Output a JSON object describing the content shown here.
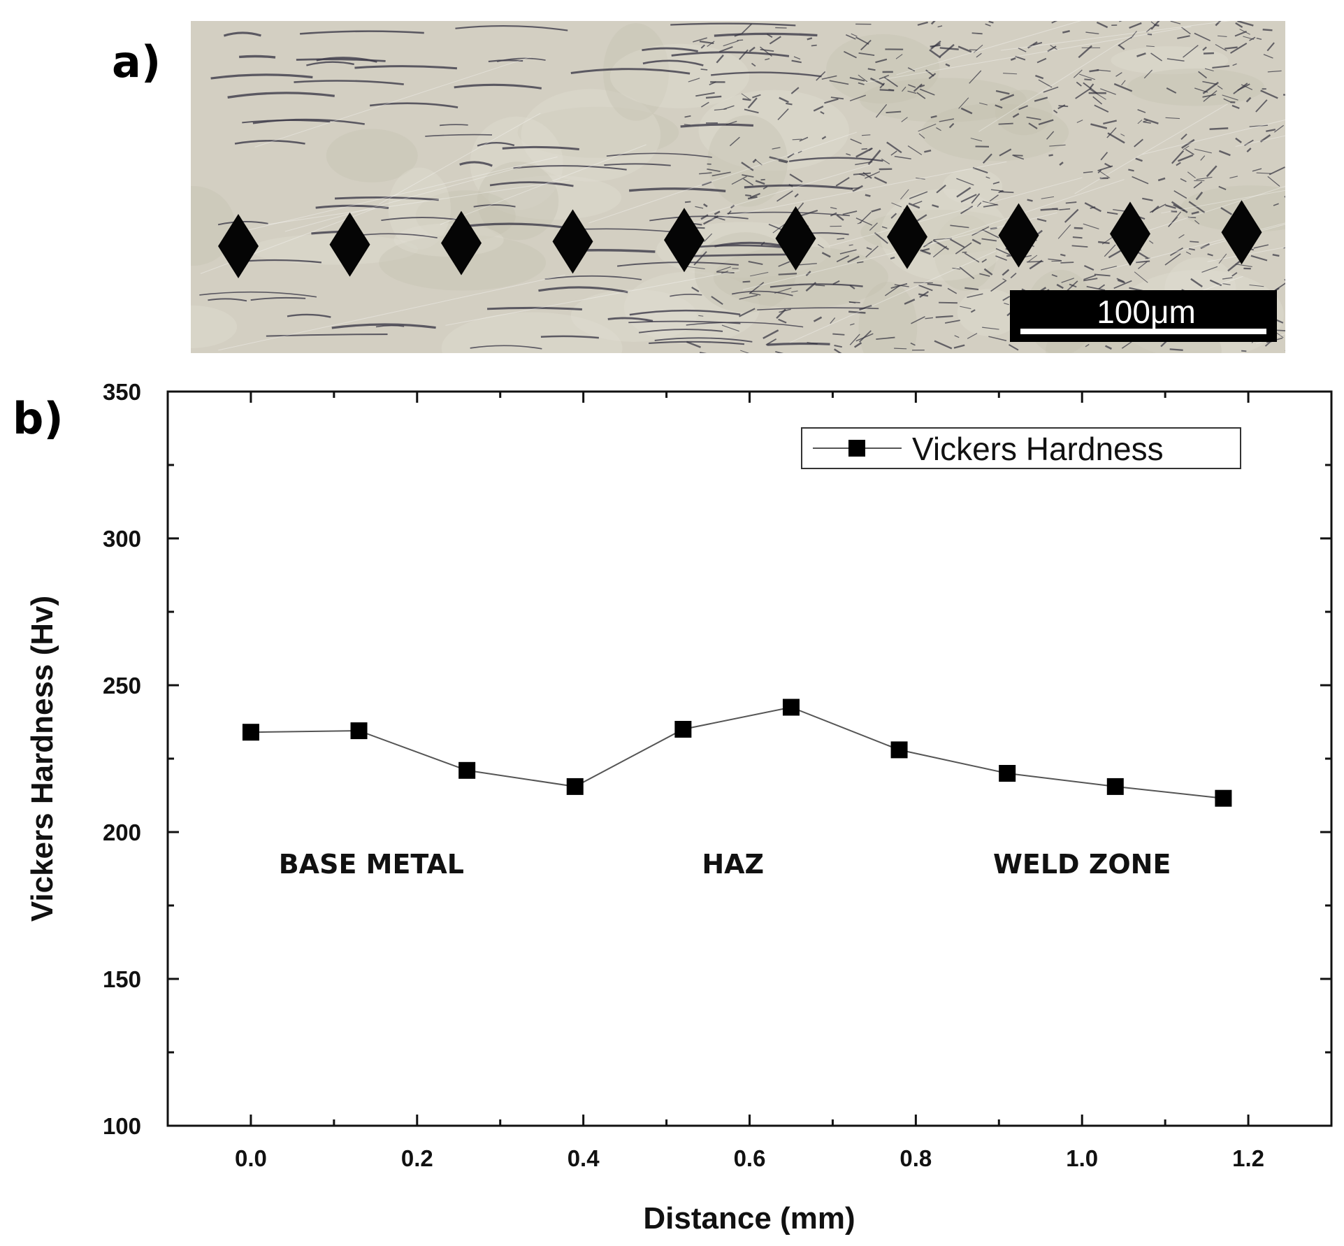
{
  "panels": {
    "a": "a)",
    "b": "b)"
  },
  "micrograph": {
    "scale_bar_label": "100μm",
    "indent_count": 10
  },
  "colors": {
    "micrograph_bg": "#d3cfc2",
    "ink": "#000000",
    "line": "#555555"
  },
  "chart_data": {
    "type": "line",
    "xlabel": "Distance (mm)",
    "ylabel": "Vickers Hardness (Hv)",
    "xlim": [
      -0.1,
      1.3
    ],
    "ylim": [
      100,
      350
    ],
    "xticks": [
      0.0,
      0.2,
      0.4,
      0.6,
      0.8,
      1.0,
      1.2
    ],
    "xtick_labels": [
      "0.0",
      "0.2",
      "0.4",
      "0.6",
      "0.8",
      "1.0",
      "1.2"
    ],
    "yticks": [
      100,
      150,
      200,
      250,
      300,
      350
    ],
    "ytick_labels": [
      "100",
      "150",
      "200",
      "250",
      "300",
      "350"
    ],
    "grid": false,
    "legend_position": "top-right",
    "series": [
      {
        "name": "Vickers Hardness",
        "marker": "square",
        "x": [
          0.0,
          0.13,
          0.26,
          0.39,
          0.52,
          0.65,
          0.78,
          0.91,
          1.04,
          1.17
        ],
        "y": [
          234,
          234.5,
          221,
          215.5,
          235,
          242.5,
          228,
          220,
          215.5,
          211.5
        ]
      }
    ],
    "annotations": [
      {
        "text": "BASE METAL",
        "x": 0.145,
        "y": 186
      },
      {
        "text": "HAZ",
        "x": 0.58,
        "y": 186
      },
      {
        "text": "WELD ZONE",
        "x": 1.0,
        "y": 186
      }
    ]
  }
}
